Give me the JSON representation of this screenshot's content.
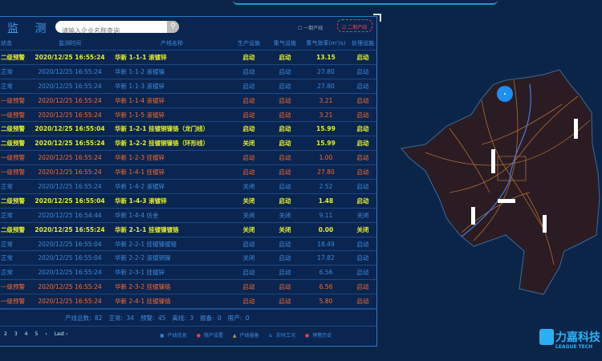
{
  "panel": {
    "title": "监 测",
    "search_placeholder": "请输入企业名称查询",
    "phase1": "一期产线",
    "phase2": "二期产线"
  },
  "table": {
    "headers": [
      "状态",
      "监测时间",
      "产线名称",
      "生产设施",
      "集气设施",
      "集气效率(m³/s)",
      "处理设施"
    ],
    "rows": [
      {
        "level": "y",
        "cells": [
          "二级预警",
          "2020/12/25 16:55:24",
          "华新 1-1-1 滚镀锌",
          "启动",
          "启动",
          "13.15",
          "启动"
        ]
      },
      {
        "level": "n",
        "cells": [
          "正常",
          "2020/12/25 16:55:24",
          "华新 1-1-2 滚镀镍",
          "启动",
          "启动",
          "27.80",
          "启动"
        ]
      },
      {
        "level": "n",
        "cells": [
          "正常",
          "2020/12/25 16:55:24",
          "华新 1-1-3 滚镀锌",
          "启动",
          "启动",
          "27.80",
          "启动"
        ]
      },
      {
        "level": "o",
        "cells": [
          "一级预警",
          "2020/12/25 16:55:24",
          "华新 1-1-4 滚镀锌",
          "启动",
          "启动",
          "3.21",
          "启动"
        ]
      },
      {
        "level": "o",
        "cells": [
          "一级预警",
          "2020/12/25 16:55:24",
          "华新 1-1-5 滚镀锌",
          "启动",
          "启动",
          "3.21",
          "启动"
        ]
      },
      {
        "level": "y",
        "cells": [
          "二级预警",
          "2020/12/25 16:55:04",
          "华新 1-2-1 挂镀铜镍铬（龙门线）",
          "启动",
          "启动",
          "15.99",
          "启动"
        ]
      },
      {
        "level": "y",
        "cells": [
          "二级预警",
          "2020/12/25 16:55:24",
          "华新 1-2-2 挂镀铜镍铬（环形线）",
          "关闭",
          "启动",
          "15.99",
          "启动"
        ]
      },
      {
        "level": "o",
        "cells": [
          "一级预警",
          "2020/12/25 16:55:24",
          "华新 1-2-3 挂镀锌",
          "启动",
          "启动",
          "1.00",
          "启动"
        ]
      },
      {
        "level": "o",
        "cells": [
          "一级预警",
          "2020/12/25 16:55:24",
          "华新 1-4-1 挂镀锌",
          "启动",
          "启动",
          "27.80",
          "启动"
        ]
      },
      {
        "level": "n",
        "cells": [
          "正常",
          "2020/12/25 16:55:24",
          "华新 1-4-2 滚镀锌",
          "关闭",
          "启动",
          "2.52",
          "启动"
        ]
      },
      {
        "level": "y",
        "cells": [
          "二级预警",
          "2020/12/25 16:55:04",
          "华新 1-4-3 滚镀锌",
          "关闭",
          "启动",
          "1.48",
          "启动"
        ]
      },
      {
        "level": "n",
        "cells": [
          "正常",
          "2020/12/25 16:54:44",
          "华新 1-4-4 仿金",
          "关闭",
          "关闭",
          "9.11",
          "关闭"
        ]
      },
      {
        "level": "y",
        "cells": [
          "二级预警",
          "2020/12/25 16:55:24",
          "华新 2-1-1 挂镀镍镀铬",
          "关闭",
          "关闭",
          "0.00",
          "关闭"
        ]
      },
      {
        "level": "n",
        "cells": [
          "正常",
          "2020/12/25 16:55:04",
          "华新 2-2-1 挂镀镍镀铬",
          "启动",
          "启动",
          "18.49",
          "启动"
        ]
      },
      {
        "level": "n",
        "cells": [
          "正常",
          "2020/12/25 16:55:04",
          "华新 2-2-2 滚镀铜镍",
          "关闭",
          "启动",
          "17.82",
          "启动"
        ]
      },
      {
        "level": "n",
        "cells": [
          "正常",
          "2020/12/25 16:55:24",
          "华新 2-3-1 挂镀锌",
          "启动",
          "启动",
          "6.56",
          "启动"
        ]
      },
      {
        "level": "o",
        "cells": [
          "一级预警",
          "2020/12/25 16:55:24",
          "华新 2-3-2 挂镀镍铬",
          "启动",
          "启动",
          "6.56",
          "启动"
        ]
      },
      {
        "level": "o",
        "cells": [
          "一级预警",
          "2020/12/25 16:55:24",
          "华新 2-4-1 挂镀镍铬",
          "启动",
          "启动",
          "5.80",
          "启动"
        ]
      }
    ]
  },
  "stats": [
    "产线总数: 82",
    "正常: 34",
    "预警: 45",
    "离线: 3",
    "报备: 0",
    "限产: 0"
  ],
  "pager": [
    "2",
    "3",
    "4",
    "5",
    "›",
    "Last ›"
  ],
  "legend": [
    {
      "icon": "info-icon",
      "symbol": "▣",
      "color": "#3f8fe0",
      "label": "产线信息"
    },
    {
      "icon": "limit-icon",
      "symbol": "●",
      "color": "#e04050",
      "label": "限产设置"
    },
    {
      "icon": "report-icon",
      "symbol": "▲",
      "color": "#c89060",
      "label": "产线报备"
    },
    {
      "icon": "realtime-icon",
      "symbol": "♿",
      "color": "#3f8fe0",
      "label": "实时工况"
    },
    {
      "icon": "alarm-history-icon",
      "symbol": "●",
      "color": "#e04050",
      "label": "预警历史"
    }
  ],
  "logo": {
    "name": "力嘉科技",
    "sub": "LEAGUE TECH"
  },
  "colors": {
    "normal": "#3a8ee0",
    "level2": "#e8f02a",
    "level1": "#ff6a2c",
    "map_fill": "#2a1c22",
    "roads": "#c97a3a"
  }
}
